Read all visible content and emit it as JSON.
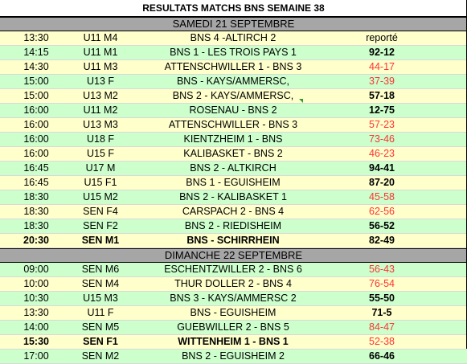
{
  "title": "RESULTATS MATCHS BNS SEMAINE 38",
  "days": [
    {
      "label": "SAMEDI 21 SEPTEMBRE",
      "rows": [
        {
          "time": "13:30",
          "category": "U11 M4",
          "match": "BNS 4 -ALTIRCH 2",
          "score": "reporté",
          "result": "none",
          "color": "yellow",
          "bold": false
        },
        {
          "time": "14:15",
          "category": "U11 M1",
          "match": "BNS 1 - LES TROIS PAYS  1",
          "score": "92-12",
          "result": "win",
          "color": "green",
          "bold": false
        },
        {
          "time": "14:30",
          "category": "U11 M3",
          "match": "ATTENSCHWILLER 1 - BNS 3",
          "score": "44-17",
          "result": "loss",
          "color": "yellow",
          "bold": false
        },
        {
          "time": "15:00",
          "category": "U13 F",
          "match": "BNS - KAYS/AMMERSC,",
          "score": "37-39",
          "result": "loss",
          "color": "green",
          "bold": false
        },
        {
          "time": "15:00",
          "category": "U13 M2",
          "match": "BNS 2 - KAYS/AMMERSC,",
          "score": "57-18",
          "result": "win",
          "color": "yellow",
          "bold": false
        },
        {
          "time": "16:00",
          "category": "U11 M2",
          "match": "ROSENAU - BNS 2",
          "score": "12-75",
          "result": "win",
          "color": "green",
          "bold": false
        },
        {
          "time": "16:00",
          "category": "U13 M3",
          "match": "ATTENSCHWILLER - BNS 3",
          "score": "57-23",
          "result": "loss",
          "color": "yellow",
          "bold": false
        },
        {
          "time": "16:00",
          "category": "U18 F",
          "match": "KIENTZHEIM  1 - BNS",
          "score": "73-46",
          "result": "loss",
          "color": "green",
          "bold": false
        },
        {
          "time": "16:00",
          "category": "U15 F",
          "match": "KALIBASKET - BNS 2",
          "score": "46-23",
          "result": "loss",
          "color": "yellow",
          "bold": false
        },
        {
          "time": "16:45",
          "category": "U17 M",
          "match": "BNS 2 - ALTKIRCH",
          "score": "94-41",
          "result": "win",
          "color": "green",
          "bold": false
        },
        {
          "time": "16:45",
          "category": "U15 F1",
          "match": "BNS 1 - EGUISHEIM",
          "score": "87-20",
          "result": "win",
          "color": "yellow",
          "bold": false
        },
        {
          "time": "18:30",
          "category": "U15 M2",
          "match": "BNS 2 - KALIBASKET 1",
          "score": "45-58",
          "result": "loss",
          "color": "green",
          "bold": false
        },
        {
          "time": "18:30",
          "category": "SEN F4",
          "match": "CARSPACH  2 - BNS 4",
          "score": "62-56",
          "result": "loss",
          "color": "yellow",
          "bold": false
        },
        {
          "time": "18:30",
          "category": "SEN F2",
          "match": "BNS 2 - RIEDISHEIM",
          "score": "56-52",
          "result": "win",
          "color": "green",
          "bold": false
        },
        {
          "time": "20:30",
          "category": "SEN M1",
          "match": "BNS  - SCHIRRHEIN",
          "score": "82-49",
          "result": "win",
          "color": "yellow",
          "bold": true
        }
      ]
    },
    {
      "label": "DIMANCHE 22 SEPTEMBRE",
      "rows": [
        {
          "time": "09:00",
          "category": "SEN M6",
          "match": "ESCHENTZWILLER 2 - BNS 6",
          "score": "56-43",
          "result": "loss",
          "color": "green",
          "bold": false
        },
        {
          "time": "10:00",
          "category": "SEN M4",
          "match": "THUR DOLLER  2 - BNS 4",
          "score": "76-54",
          "result": "loss",
          "color": "yellow",
          "bold": false
        },
        {
          "time": "10:30",
          "category": "U15 M3",
          "match": "BNS 3 -  KAYS/AMMERSC 2",
          "score": "55-50",
          "result": "win",
          "color": "green",
          "bold": false
        },
        {
          "time": "13:30",
          "category": "U11 F",
          "match": "BNS - EGUISHEIM",
          "score": "71-5",
          "result": "win",
          "color": "yellow",
          "bold": false
        },
        {
          "time": "14:00",
          "category": "SEN M5",
          "match": "GUEBWILLER  2 - BNS 5",
          "score": "84-47",
          "result": "loss",
          "color": "green",
          "bold": false
        },
        {
          "time": "15:30",
          "category": "SEN F1",
          "match": "WITTENHEIM 1 - BNS 1",
          "score": "52-38",
          "result": "loss",
          "color": "yellow",
          "bold": true
        },
        {
          "time": "17:00",
          "category": "SEN M2",
          "match": "BNS 2 - EGUISHEIM 2",
          "score": "66-46",
          "result": "win",
          "color": "green",
          "bold": false
        }
      ]
    }
  ],
  "colors": {
    "yellow": "#ffffcc",
    "green": "#ccffcc",
    "header_gray": "#a6a6a6",
    "loss": "#ff3333",
    "win": "#000000"
  }
}
